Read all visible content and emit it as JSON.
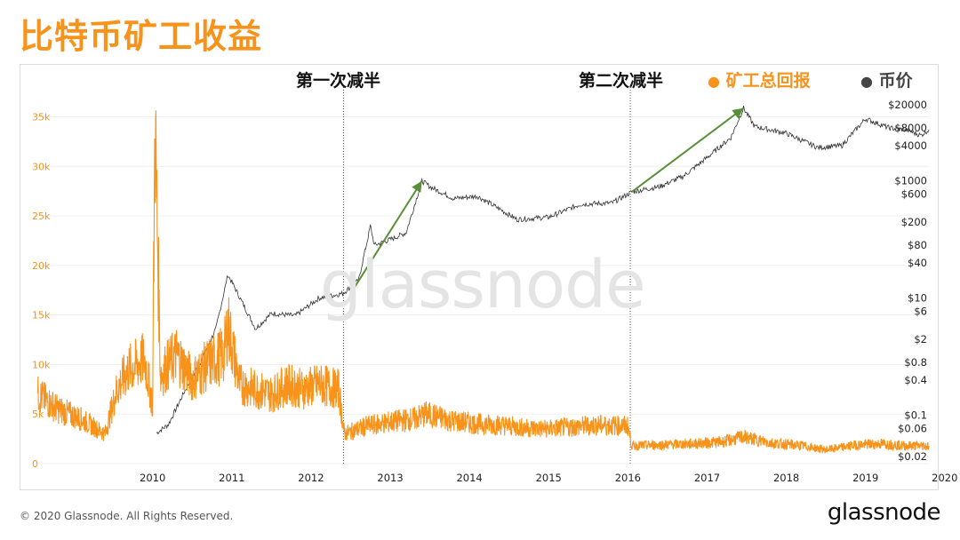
{
  "title": "比特币矿工收益",
  "footer": {
    "copyright": "© 2020 Glassnode. All Rights Reserved.",
    "brand": "glassnode"
  },
  "watermark": "glassnode",
  "colors": {
    "revenue": "#f7931a",
    "price": "#333333",
    "arrow": "#5a8f3a",
    "title": "#f7931a"
  },
  "chart_data": {
    "type": "line",
    "title": "比特币矿工收益",
    "halvings": [
      {
        "label": "第一次减半",
        "x": 2012.91
      },
      {
        "label": "第二次减半",
        "x": 2016.53
      }
    ],
    "x_ticks": [
      "2010",
      "2011",
      "2012",
      "2013",
      "2014",
      "2015",
      "2016",
      "2017",
      "2018",
      "2019",
      "2020"
    ],
    "left_axis": {
      "ticks": [
        "0",
        "5k",
        "10k",
        "15k",
        "20k",
        "25k",
        "30k",
        "35k"
      ],
      "values": [
        0,
        5000,
        10000,
        15000,
        20000,
        25000,
        30000,
        35000
      ],
      "range": [
        0,
        38000
      ]
    },
    "right_axis": {
      "scale": "log",
      "ticks": [
        "$20000",
        "$8000",
        "$4000",
        "$1000",
        "$600",
        "$200",
        "$80",
        "$40",
        "$10",
        "$6",
        "$2",
        "$0.8",
        "$0.4",
        "$0.1",
        "$0.06",
        "$0.02"
      ],
      "values": [
        20000,
        8000,
        4000,
        1000,
        600,
        200,
        80,
        40,
        10,
        6,
        2,
        0.8,
        0.4,
        0.1,
        0.06,
        0.02
      ],
      "range": [
        0.015,
        40000
      ]
    },
    "series": [
      {
        "name": "矿工总回报",
        "axis": "left",
        "points": [
          [
            2009.05,
            7000
          ],
          [
            2009.3,
            5500
          ],
          [
            2009.6,
            4500
          ],
          [
            2009.9,
            3000
          ],
          [
            2010.05,
            7500
          ],
          [
            2010.2,
            9500
          ],
          [
            2010.4,
            10500
          ],
          [
            2010.5,
            6000
          ],
          [
            2010.53,
            34500
          ],
          [
            2010.6,
            9000
          ],
          [
            2010.8,
            11000
          ],
          [
            2011.0,
            8500
          ],
          [
            2011.2,
            10000
          ],
          [
            2011.4,
            11000
          ],
          [
            2011.45,
            14000
          ],
          [
            2011.6,
            8000
          ],
          [
            2011.8,
            7500
          ],
          [
            2012.0,
            7000
          ],
          [
            2012.2,
            8000
          ],
          [
            2012.4,
            7500
          ],
          [
            2012.6,
            8000
          ],
          [
            2012.85,
            7500
          ],
          [
            2012.92,
            3000
          ],
          [
            2013.2,
            3800
          ],
          [
            2013.5,
            4200
          ],
          [
            2013.8,
            4500
          ],
          [
            2013.95,
            5000
          ],
          [
            2014.3,
            4300
          ],
          [
            2014.6,
            4000
          ],
          [
            2014.9,
            3900
          ],
          [
            2015.2,
            3600
          ],
          [
            2015.5,
            3500
          ],
          [
            2015.8,
            3700
          ],
          [
            2016.1,
            3900
          ],
          [
            2016.5,
            3800
          ],
          [
            2016.55,
            1800
          ],
          [
            2016.9,
            1900
          ],
          [
            2017.3,
            2000
          ],
          [
            2017.7,
            2200
          ],
          [
            2017.95,
            2700
          ],
          [
            2018.3,
            2100
          ],
          [
            2018.7,
            1800
          ],
          [
            2019.0,
            1400
          ],
          [
            2019.4,
            1900
          ],
          [
            2019.7,
            2000
          ],
          [
            2020.0,
            1800
          ],
          [
            2020.3,
            1800
          ]
        ]
      },
      {
        "name": "币价",
        "axis": "right",
        "points": [
          [
            2010.55,
            0.05
          ],
          [
            2010.7,
            0.07
          ],
          [
            2010.9,
            0.25
          ],
          [
            2011.1,
            0.8
          ],
          [
            2011.3,
            3
          ],
          [
            2011.45,
            25
          ],
          [
            2011.55,
            14
          ],
          [
            2011.8,
            3
          ],
          [
            2012.0,
            5.5
          ],
          [
            2012.3,
            5
          ],
          [
            2012.6,
            10
          ],
          [
            2012.9,
            12
          ],
          [
            2013.1,
            20
          ],
          [
            2013.25,
            170
          ],
          [
            2013.3,
            80
          ],
          [
            2013.5,
            100
          ],
          [
            2013.7,
            130
          ],
          [
            2013.9,
            1000
          ],
          [
            2014.0,
            800
          ],
          [
            2014.3,
            500
          ],
          [
            2014.6,
            550
          ],
          [
            2014.9,
            320
          ],
          [
            2015.1,
            220
          ],
          [
            2015.5,
            240
          ],
          [
            2015.9,
            400
          ],
          [
            2016.3,
            420
          ],
          [
            2016.55,
            650
          ],
          [
            2016.9,
            800
          ],
          [
            2017.2,
            1200
          ],
          [
            2017.5,
            2500
          ],
          [
            2017.8,
            5500
          ],
          [
            2017.96,
            17500
          ],
          [
            2018.1,
            8500
          ],
          [
            2018.5,
            6500
          ],
          [
            2018.9,
            3700
          ],
          [
            2019.2,
            4000
          ],
          [
            2019.5,
            11500
          ],
          [
            2019.8,
            8000
          ],
          [
            2020.0,
            7500
          ],
          [
            2020.2,
            6000
          ],
          [
            2020.3,
            7500
          ]
        ]
      }
    ],
    "trend_arrows": [
      {
        "from": [
          2013.0,
          12
        ],
        "to": [
          2013.9,
          1000
        ]
      },
      {
        "from": [
          2016.55,
          650
        ],
        "to": [
          2017.96,
          17500
        ]
      }
    ]
  }
}
